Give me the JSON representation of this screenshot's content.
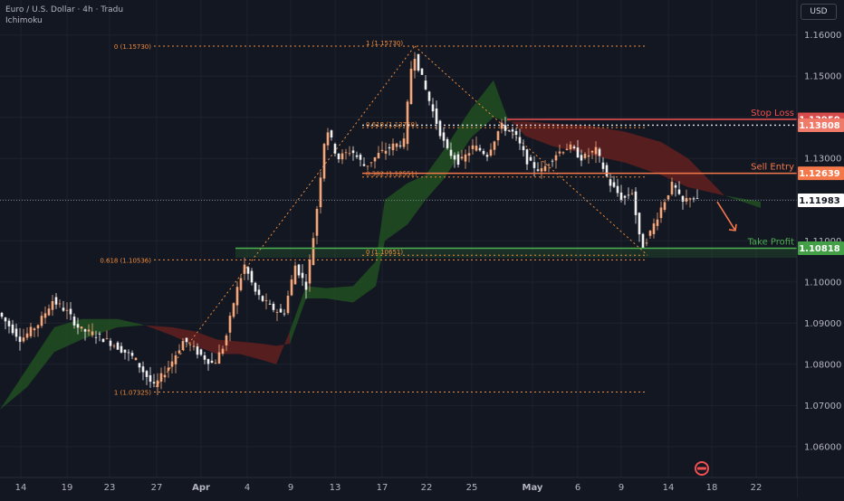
{
  "header": {
    "symbol_line": "Euro / U.S. Dollar · 4h · Tradu",
    "indicator": "Ichimoku",
    "currency": "USD"
  },
  "colors": {
    "background": "#131722",
    "bull": "#f7a67a",
    "bear": "#f0f0f0",
    "fib": "#f08c3c",
    "stop_loss": "#f05050",
    "stop_loss_label_bg": "#d84b4b",
    "stop_alt_label_bg": "#f07a6a",
    "sell_entry": "#f5784a",
    "take_profit": "#4caf50",
    "cloud_bull": "#1f4a22",
    "cloud_bear": "#5a1f1f",
    "price_label_bg": "#ffffff"
  },
  "chart_data": {
    "type": "candlestick",
    "ylim": [
      1.0525,
      1.1685
    ],
    "y_ticks": [
      "1.16000",
      "1.15000",
      "1.14000",
      "1.13000",
      "1.12000",
      "1.11000",
      "1.10000",
      "1.09000",
      "1.08000",
      "1.07000",
      "1.06000"
    ],
    "y_tick_values": [
      1.16,
      1.15,
      1.14,
      1.13,
      1.12,
      1.11,
      1.1,
      1.09,
      1.08,
      1.07,
      1.06
    ],
    "x_ticks": [
      {
        "label": "14",
        "pos": 23,
        "bold": false
      },
      {
        "label": "19",
        "pos": 74,
        "bold": false
      },
      {
        "label": "23",
        "pos": 121,
        "bold": false
      },
      {
        "label": "27",
        "pos": 173,
        "bold": false
      },
      {
        "label": "Apr",
        "pos": 222,
        "bold": true
      },
      {
        "label": "4",
        "pos": 273,
        "bold": false
      },
      {
        "label": "9",
        "pos": 321,
        "bold": false
      },
      {
        "label": "13",
        "pos": 370,
        "bold": false
      },
      {
        "label": "17",
        "pos": 422,
        "bold": false
      },
      {
        "label": "22",
        "pos": 471,
        "bold": false
      },
      {
        "label": "25",
        "pos": 521,
        "bold": false
      },
      {
        "label": "May",
        "pos": 588,
        "bold": true
      },
      {
        "label": "6",
        "pos": 638,
        "bold": false
      },
      {
        "label": "9",
        "pos": 686,
        "bold": false
      },
      {
        "label": "14",
        "pos": 738,
        "bold": false
      },
      {
        "label": "18",
        "pos": 786,
        "bold": false
      },
      {
        "label": "22",
        "pos": 835,
        "bold": false
      }
    ],
    "path_points": [
      [
        0,
        1.0925
      ],
      [
        25,
        1.086
      ],
      [
        45,
        1.09
      ],
      [
        60,
        1.0955
      ],
      [
        75,
        1.093
      ],
      [
        90,
        1.0885
      ],
      [
        110,
        1.087
      ],
      [
        130,
        1.0845
      ],
      [
        150,
        1.0815
      ],
      [
        172,
        1.0745
      ],
      [
        190,
        1.08
      ],
      [
        205,
        1.086
      ],
      [
        222,
        1.0825
      ],
      [
        238,
        1.08
      ],
      [
        250,
        1.085
      ],
      [
        262,
        1.097
      ],
      [
        272,
        1.104
      ],
      [
        285,
        1.097
      ],
      [
        300,
        1.094
      ],
      [
        315,
        1.092
      ],
      [
        328,
        1.104
      ],
      [
        340,
        1.099
      ],
      [
        350,
        1.114
      ],
      [
        362,
        1.138
      ],
      [
        375,
        1.13
      ],
      [
        390,
        1.132
      ],
      [
        405,
        1.128
      ],
      [
        420,
        1.131
      ],
      [
        435,
        1.133
      ],
      [
        448,
        1.134
      ],
      [
        458,
        1.1565
      ],
      [
        470,
        1.148
      ],
      [
        482,
        1.14
      ],
      [
        495,
        1.132
      ],
      [
        510,
        1.129
      ],
      [
        525,
        1.133
      ],
      [
        540,
        1.131
      ],
      [
        555,
        1.138
      ],
      [
        570,
        1.136
      ],
      [
        585,
        1.129
      ],
      [
        600,
        1.127
      ],
      [
        615,
        1.131
      ],
      [
        630,
        1.133
      ],
      [
        645,
        1.13
      ],
      [
        660,
        1.132
      ],
      [
        675,
        1.124
      ],
      [
        690,
        1.12
      ],
      [
        700,
        1.122
      ],
      [
        710,
        1.108
      ],
      [
        720,
        1.112
      ],
      [
        732,
        1.118
      ],
      [
        745,
        1.124
      ],
      [
        755,
        1.119
      ],
      [
        765,
        1.121
      ],
      [
        772,
        1.1195
      ]
    ],
    "ichimoku_cloud": {
      "span_a": [
        [
          0,
          1.069
        ],
        [
          30,
          1.079
        ],
        [
          60,
          1.089
        ],
        [
          90,
          1.091
        ],
        [
          130,
          1.091
        ],
        [
          160,
          1.0895
        ],
        [
          190,
          1.087
        ],
        [
          215,
          1.0845
        ],
        [
          240,
          1.0825
        ],
        [
          265,
          1.0825
        ],
        [
          290,
          1.081
        ],
        [
          305,
          1.08
        ],
        [
          320,
          1.088
        ],
        [
          338,
          1.099
        ],
        [
          360,
          1.0985
        ],
        [
          390,
          1.099
        ],
        [
          415,
          1.105
        ],
        [
          425,
          1.12
        ],
        [
          450,
          1.124
        ],
        [
          470,
          1.126
        ],
        [
          490,
          1.132
        ],
        [
          520,
          1.142
        ],
        [
          545,
          1.149
        ],
        [
          560,
          1.14
        ],
        [
          580,
          1.1355
        ],
        [
          610,
          1.133
        ],
        [
          650,
          1.131
        ],
        [
          690,
          1.129
        ],
        [
          730,
          1.126
        ],
        [
          760,
          1.123
        ],
        [
          800,
          1.121
        ],
        [
          840,
          1.1195
        ]
      ],
      "span_b": [
        [
          0,
          1.069
        ],
        [
          30,
          1.0745
        ],
        [
          60,
          1.083
        ],
        [
          90,
          1.086
        ],
        [
          130,
          1.089
        ],
        [
          160,
          1.0895
        ],
        [
          190,
          1.089
        ],
        [
          215,
          1.088
        ],
        [
          240,
          1.086
        ],
        [
          265,
          1.0855
        ],
        [
          290,
          1.085
        ],
        [
          305,
          1.0845
        ],
        [
          320,
          1.085
        ],
        [
          338,
          1.096
        ],
        [
          360,
          1.096
        ],
        [
          390,
          1.095
        ],
        [
          415,
          1.099
        ],
        [
          425,
          1.11
        ],
        [
          450,
          1.114
        ],
        [
          470,
          1.12
        ],
        [
          490,
          1.125
        ],
        [
          520,
          1.135
        ],
        [
          545,
          1.14
        ],
        [
          560,
          1.139
        ],
        [
          580,
          1.139
        ],
        [
          610,
          1.1385
        ],
        [
          650,
          1.138
        ],
        [
          690,
          1.1365
        ],
        [
          730,
          1.134
        ],
        [
          760,
          1.13
        ],
        [
          800,
          1.121
        ],
        [
          840,
          1.118
        ]
      ]
    },
    "fib_upper": {
      "x_start": 400,
      "x_end": 715,
      "levels": [
        {
          "label": "1 (1.15730)",
          "value": 1.1573
        },
        {
          "label": "0.618 (1.13750)",
          "value": 1.1375
        },
        {
          "label": "0.382 (1.12551)",
          "value": 1.1255
        },
        {
          "label": "0 (1.10651)",
          "value": 1.1065
        }
      ]
    },
    "fib_lower": {
      "x_start": 170,
      "x_end": 715,
      "levels": [
        {
          "label": "0 (1.15730)",
          "value": 1.1573
        },
        {
          "label": "0.618 (1.10536)",
          "value": 1.10536
        },
        {
          "label": "1 (1.07325)",
          "value": 1.07325
        }
      ]
    },
    "swing_lines": [
      [
        [
          172,
          1.0745
        ],
        [
          458,
          1.1573
        ]
      ],
      [
        [
          458,
          1.1573
        ],
        [
          715,
          1.1065
        ]
      ]
    ],
    "levels": [
      {
        "name": "Stop Loss",
        "value": 1.1395,
        "price_label": "1.13950",
        "style": "solid"
      },
      {
        "name": "",
        "value": 1.13808,
        "price_label": "1.13808",
        "style": "dotted"
      },
      {
        "name": "Sell Entry",
        "value": 1.12639,
        "price_label": "1.12639",
        "style": "solid"
      },
      {
        "name": "Take Profit",
        "value": 1.10818,
        "price_label": "1.10818",
        "style": "solid"
      }
    ],
    "current_price": {
      "value": 1.11983,
      "label": "1.11983"
    }
  }
}
